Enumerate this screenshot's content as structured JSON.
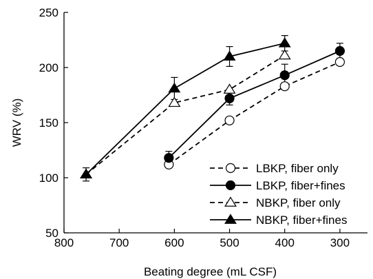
{
  "chart_data": {
    "type": "line",
    "xlabel": "Beating degree (mL CSF)",
    "ylabel": "WRV (%)",
    "xlim": [
      800,
      250
    ],
    "ylim": [
      50,
      250
    ],
    "x_reversed": true,
    "xticks": [
      800,
      700,
      600,
      500,
      400,
      300
    ],
    "yticks": [
      50,
      100,
      150,
      200,
      250
    ],
    "grid": false,
    "legend_position": "bottom-right",
    "series": [
      {
        "name": "LBKP, fiber only",
        "marker": "circle",
        "filled": false,
        "dashed": true,
        "points": [
          {
            "x": 610,
            "y": 112,
            "err": 0
          },
          {
            "x": 500,
            "y": 152,
            "err": 0
          },
          {
            "x": 400,
            "y": 183,
            "err": 3
          },
          {
            "x": 300,
            "y": 205,
            "err": 0
          }
        ]
      },
      {
        "name": "LBKP, fiber+fines",
        "marker": "circle",
        "filled": true,
        "dashed": false,
        "points": [
          {
            "x": 610,
            "y": 118,
            "err": 6
          },
          {
            "x": 500,
            "y": 172,
            "err": 6
          },
          {
            "x": 400,
            "y": 193,
            "err": 10
          },
          {
            "x": 300,
            "y": 215,
            "err": 7
          }
        ]
      },
      {
        "name": "NBKP, fiber only",
        "marker": "triangle",
        "filled": false,
        "dashed": true,
        "points": [
          {
            "x": 760,
            "y": 103,
            "err": 0
          },
          {
            "x": 600,
            "y": 168,
            "err": 0
          },
          {
            "x": 500,
            "y": 180,
            "err": 0
          },
          {
            "x": 400,
            "y": 211,
            "err": 0
          }
        ]
      },
      {
        "name": "NBKP, fiber+fines",
        "marker": "triangle",
        "filled": true,
        "dashed": false,
        "points": [
          {
            "x": 760,
            "y": 103,
            "err": 6
          },
          {
            "x": 600,
            "y": 181,
            "err": 10
          },
          {
            "x": 500,
            "y": 210,
            "err": 9
          },
          {
            "x": 400,
            "y": 222,
            "err": 7
          }
        ]
      }
    ]
  }
}
